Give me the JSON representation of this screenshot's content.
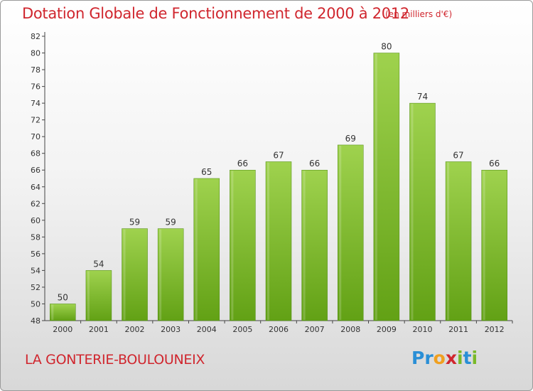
{
  "chart_data": {
    "type": "bar",
    "title": "Dotation Globale de Fonctionnement de 2000 à 2012",
    "unit_note": "(en milliers d'€)",
    "categories": [
      "2000",
      "2001",
      "2002",
      "2003",
      "2004",
      "2005",
      "2006",
      "2007",
      "2008",
      "2009",
      "2010",
      "2011",
      "2012"
    ],
    "values": [
      50,
      54,
      59,
      59,
      65,
      66,
      67,
      66,
      69,
      80,
      74,
      67,
      66
    ],
    "yticks": [
      48,
      50,
      52,
      54,
      56,
      58,
      60,
      62,
      64,
      66,
      68,
      70,
      72,
      74,
      76,
      78,
      80,
      82
    ],
    "ylim": [
      48,
      82
    ],
    "xlabel": "",
    "ylabel": "",
    "grid": false,
    "bar_color_top": "#9fd24e",
    "bar_color_bottom": "#62a115"
  },
  "commune": "LA GONTERIE-BOULOUNEIX",
  "logo": {
    "letters": [
      {
        "char": "P",
        "color": "#2a8fd6"
      },
      {
        "char": "r",
        "color": "#2a8fd6"
      },
      {
        "char": "o",
        "color": "#f0a020"
      },
      {
        "char": "x",
        "color": "#d0262e"
      },
      {
        "char": "i",
        "color": "#79b928"
      },
      {
        "char": "t",
        "color": "#2a8fd6"
      },
      {
        "char": "i",
        "color": "#79b928"
      }
    ]
  }
}
